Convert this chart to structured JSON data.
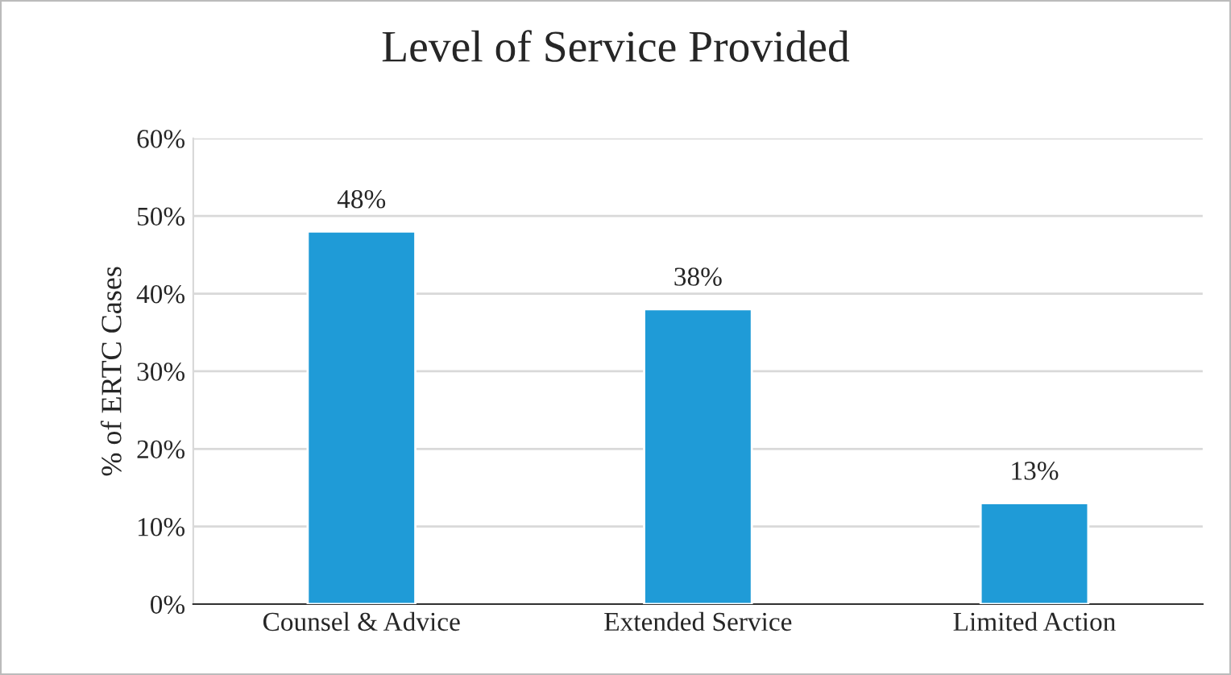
{
  "chart_data": {
    "type": "bar",
    "title": "Level of Service Provided",
    "ylabel": "% of ERTC Cases",
    "categories": [
      "Counsel & Advice",
      "Extended Service",
      "Limited Action"
    ],
    "values": [
      48,
      38,
      13
    ],
    "color": "#1f9bd7",
    "value_labels": [
      "48%",
      "38%",
      "13%"
    ],
    "ylim": [
      0,
      60
    ],
    "yticks": [
      {
        "value": 0,
        "label": "0%"
      },
      {
        "value": 10,
        "label": "10%"
      },
      {
        "value": 20,
        "label": "20%"
      },
      {
        "value": 30,
        "label": "30%"
      },
      {
        "value": 40,
        "label": "40%"
      },
      {
        "value": 50,
        "label": "50%"
      },
      {
        "value": 60,
        "label": "60%"
      }
    ],
    "grid": "y",
    "legend": false
  }
}
